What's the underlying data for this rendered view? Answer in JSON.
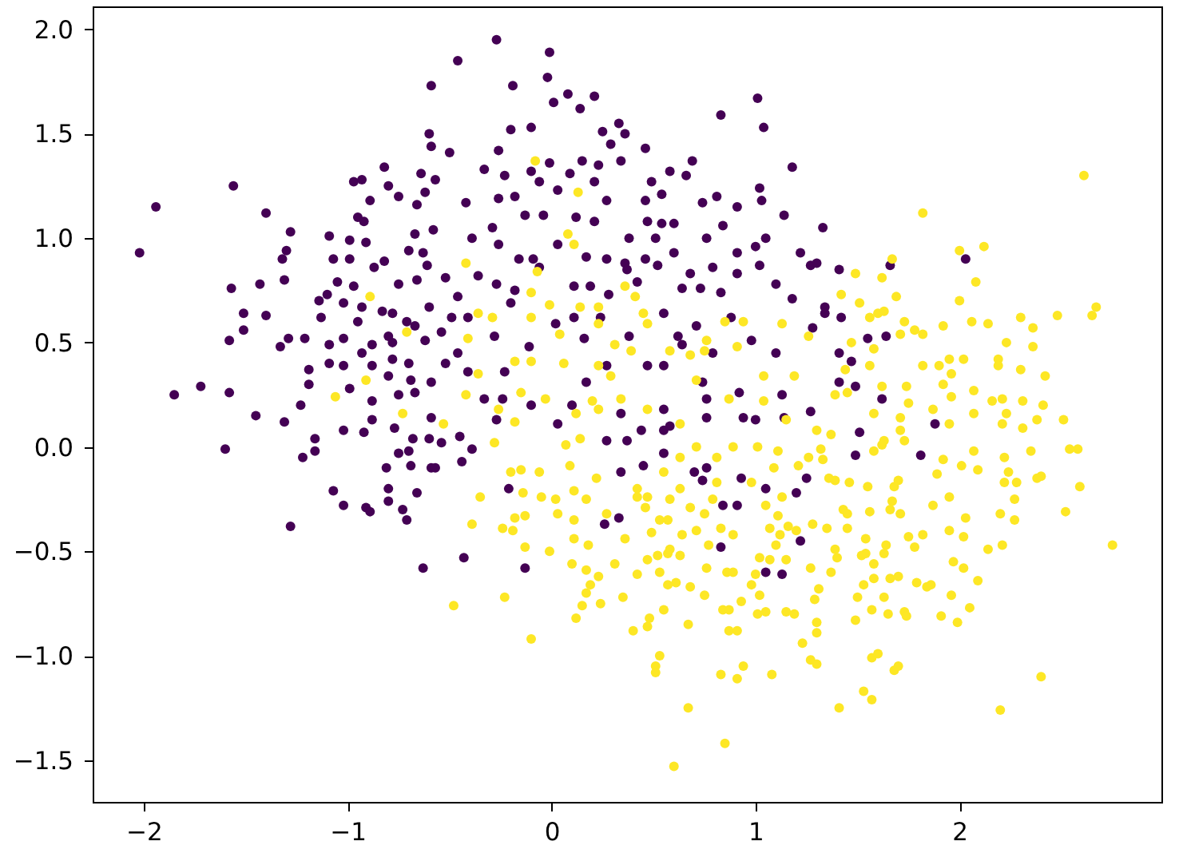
{
  "chart_data": {
    "type": "scatter",
    "xlim": [
      -2.25,
      2.99
    ],
    "ylim": [
      -1.7,
      2.11
    ],
    "xticks": [
      {
        "value": -2,
        "label": "−2"
      },
      {
        "value": -1,
        "label": "−1"
      },
      {
        "value": 0,
        "label": "0"
      },
      {
        "value": 1,
        "label": "1"
      },
      {
        "value": 2,
        "label": "2"
      }
    ],
    "yticks": [
      {
        "value": -1.5,
        "label": "−1.5"
      },
      {
        "value": -1,
        "label": "−1.0"
      },
      {
        "value": -0.5,
        "label": "−0.5"
      },
      {
        "value": 0,
        "label": "0.0"
      },
      {
        "value": 0.5,
        "label": "0.5"
      },
      {
        "value": 1,
        "label": "1.0"
      },
      {
        "value": 1.5,
        "label": "1.5"
      },
      {
        "value": 2,
        "label": "2.0"
      }
    ],
    "marker": "circle",
    "series": [
      {
        "color": "#440154",
        "x": [
          -2.02,
          -1.94,
          -1.56,
          -1.4,
          -1.28,
          -1.3,
          -1.32,
          -1.31,
          -1.57,
          -1.43,
          -1.51,
          -1.4,
          -1.58,
          -1.51,
          -1.29,
          -1.33,
          -1.21,
          -1.85,
          -1.72,
          -1.58,
          -1.19,
          -1.19,
          -1.23,
          -0.59,
          -0.6,
          -0.59,
          -0.82,
          -0.97,
          -0.93,
          -0.64,
          -0.57,
          -0.8,
          -0.75,
          -0.62,
          -0.89,
          -0.66,
          -0.95,
          -0.92,
          -0.58,
          -1.09,
          -0.99,
          -0.91,
          -0.67,
          -0.7,
          -0.63,
          -1.07,
          -0.99,
          -0.82,
          -0.87,
          -0.61,
          -1.05,
          -0.97,
          -0.75,
          -0.66,
          -0.52,
          -1.14,
          -1.1,
          -1.02,
          -0.93,
          -0.83,
          -0.78,
          -0.6,
          -1.13,
          -0.95,
          -0.71,
          -0.67,
          -1.02,
          -0.88,
          -0.8,
          -0.78,
          -1.09,
          -0.93,
          -0.78,
          -0.62,
          -0.54,
          -1.09,
          -1.02,
          -0.88,
          -0.8,
          -0.7,
          -0.69,
          -0.59,
          -0.52,
          -0.99,
          -0.88,
          -0.75,
          -0.67,
          -1.45,
          -1.31,
          -1.6,
          -1.16,
          -1.16,
          -1.22,
          -1.28,
          -1.07,
          -1.02,
          -1.02,
          -0.92,
          -0.88,
          -0.91,
          -0.89,
          -0.81,
          -0.8,
          -0.8,
          -0.77,
          -0.75,
          -0.73,
          -0.71,
          -0.7,
          -0.69,
          -0.68,
          -0.66,
          -0.63,
          -0.6,
          -0.59,
          -0.57,
          -0.54,
          -0.59,
          -0.27,
          -0.46,
          -0.01,
          -0.02,
          -0.19,
          0.01,
          0.08,
          0.14,
          0.21,
          -0.2,
          -0.1,
          -0.5,
          -0.26,
          0.25,
          0.33,
          0.29,
          0.36,
          0.46,
          0.83,
          1.01,
          1.04,
          1.18,
          -0.33,
          -0.23,
          -0.1,
          -0.01,
          0.09,
          0.15,
          0.23,
          0.34,
          -0.42,
          -0.26,
          -0.18,
          -0.06,
          0.03,
          0.21,
          0.27,
          0.49,
          0.58,
          0.66,
          0.69,
          0.54,
          0.46,
          0.74,
          0.81,
          0.91,
          1.02,
          1.03,
          1.14,
          -0.29,
          -0.13,
          -0.04,
          0.12,
          0.21,
          0.38,
          0.47,
          0.54,
          0.6,
          0.51,
          0.76,
          0.84,
          0.91,
          1.0,
          1.05,
          1.22,
          -0.39,
          -0.26,
          -0.16,
          -0.09,
          0.03,
          0.17,
          0.27,
          0.36,
          0.46,
          0.52,
          0.6,
          0.68,
          0.79,
          0.91,
          1.02,
          1.1,
          1.18,
          -0.36,
          -0.27,
          -0.18,
          -0.06,
          0.11,
          0.19,
          0.28,
          0.37,
          0.42,
          0.64,
          0.73,
          0.83,
          -0.46,
          -0.49,
          -0.41,
          -0.28,
          -0.2,
          0.02,
          0.11,
          0.16,
          0.24,
          0.38,
          0.55,
          0.62,
          0.71,
          0.79,
          0.88,
          0.98,
          1.1,
          -0.46,
          -0.41,
          -0.23,
          -0.11,
          0.17,
          0.27,
          0.47,
          0.55,
          0.64,
          0.74,
          0.92,
          1.13,
          -0.33,
          -0.24,
          -0.1,
          0.1,
          0.34,
          0.55,
          0.76,
          1.33,
          1.27,
          1.3,
          1.41,
          1.66,
          2.03,
          1.34,
          1.34,
          1.42,
          1.28,
          1.64,
          1.55,
          1.41,
          1.47,
          1.41,
          1.49,
          1.62,
          1.27,
          1.51,
          1.49,
          1.88,
          1.81,
          -0.27,
          0.03,
          -0.45,
          -0.39,
          -0.44,
          -0.21,
          -0.43,
          -0.13,
          0.27,
          0.37,
          0.34,
          0.45,
          0.44,
          0.55,
          0.58,
          0.55,
          0.76,
          0.7,
          0.76,
          0.74,
          0.93,
          0.94,
          1.0,
          0.84,
          0.91,
          1.05,
          1.2,
          1.25,
          0.26,
          0.33,
          0.83,
          1.22,
          1.05,
          1.13,
          1.14
        ],
        "values": [
          0.93,
          1.15,
          1.25,
          1.12,
          1.03,
          0.94,
          0.9,
          0.8,
          0.76,
          0.78,
          0.64,
          0.63,
          0.51,
          0.56,
          0.52,
          0.48,
          0.52,
          0.25,
          0.29,
          0.26,
          0.37,
          0.3,
          0.2,
          1.73,
          1.5,
          1.44,
          1.34,
          1.27,
          1.28,
          1.31,
          1.28,
          1.25,
          1.2,
          1.22,
          1.18,
          1.16,
          1.1,
          1.08,
          1.04,
          1.01,
          0.99,
          0.98,
          1.02,
          0.94,
          0.93,
          0.9,
          0.9,
          0.89,
          0.86,
          0.87,
          0.79,
          0.77,
          0.78,
          0.8,
          0.81,
          0.7,
          0.73,
          0.69,
          0.67,
          0.65,
          0.64,
          0.67,
          0.62,
          0.6,
          0.6,
          0.58,
          0.52,
          0.49,
          0.53,
          0.5,
          0.49,
          0.45,
          0.42,
          0.51,
          0.55,
          0.4,
          0.39,
          0.39,
          0.34,
          0.4,
          0.32,
          0.31,
          0.4,
          0.28,
          0.22,
          0.25,
          0.26,
          0.15,
          0.12,
          -0.01,
          0.04,
          -0.02,
          -0.05,
          -0.38,
          -0.21,
          -0.28,
          0.08,
          0.07,
          0.13,
          -0.29,
          -0.31,
          -0.1,
          -0.2,
          -0.26,
          0.09,
          -0.03,
          -0.3,
          -0.35,
          -0.02,
          -0.09,
          0.04,
          -0.22,
          -0.58,
          0.04,
          -0.1,
          -0.1,
          0.02,
          0.14,
          1.95,
          1.85,
          1.89,
          1.77,
          1.73,
          1.65,
          1.69,
          1.62,
          1.68,
          1.52,
          1.53,
          1.41,
          1.42,
          1.51,
          1.55,
          1.45,
          1.5,
          1.43,
          1.59,
          1.67,
          1.53,
          1.34,
          1.33,
          1.3,
          1.32,
          1.36,
          1.31,
          1.37,
          1.35,
          1.37,
          1.17,
          1.19,
          1.2,
          1.27,
          1.23,
          1.27,
          1.18,
          1.27,
          1.32,
          1.3,
          1.37,
          1.21,
          1.18,
          1.17,
          1.2,
          1.15,
          1.24,
          1.18,
          1.11,
          1.05,
          1.11,
          1.11,
          1.1,
          1.08,
          1.0,
          1.08,
          1.07,
          1.07,
          1.0,
          1.0,
          1.06,
          0.93,
          0.96,
          1.0,
          0.93,
          1.0,
          0.97,
          0.9,
          0.9,
          0.97,
          0.91,
          0.9,
          0.88,
          0.9,
          0.87,
          0.93,
          0.83,
          0.86,
          0.83,
          0.87,
          0.78,
          0.71,
          0.82,
          0.78,
          0.75,
          0.86,
          0.77,
          0.77,
          0.73,
          0.85,
          0.79,
          0.76,
          0.76,
          0.74,
          0.72,
          0.62,
          0.62,
          0.53,
          0.69,
          0.59,
          0.62,
          0.52,
          0.62,
          0.53,
          0.64,
          0.53,
          0.58,
          0.45,
          0.62,
          0.51,
          0.45,
          0.45,
          0.36,
          0.36,
          0.48,
          0.31,
          0.39,
          0.39,
          0.39,
          0.49,
          0.31,
          0.26,
          0.25,
          0.23,
          0.23,
          0.2,
          0.2,
          0.16,
          0.18,
          0.23,
          1.05,
          0.87,
          0.88,
          0.85,
          0.87,
          0.9,
          0.67,
          0.64,
          0.62,
          0.57,
          0.53,
          0.52,
          0.45,
          0.41,
          0.31,
          0.29,
          0.23,
          0.17,
          0.07,
          -0.04,
          0.11,
          -0.04,
          0.13,
          0.11,
          0.05,
          -0.01,
          -0.07,
          -0.2,
          -0.53,
          -0.58,
          0.03,
          0.03,
          -0.12,
          -0.09,
          0.08,
          0.08,
          0.1,
          -0.03,
          0.14,
          -0.12,
          -0.1,
          -0.16,
          -0.15,
          0.14,
          0.13,
          -0.28,
          -0.28,
          -0.2,
          -0.22,
          -0.15,
          -0.37,
          -0.34,
          -0.48,
          -0.45,
          -0.6,
          -0.61,
          0.14
        ]
      },
      {
        "color": "#fde725",
        "x": [
          -0.89,
          -0.71,
          -0.91,
          -1.06,
          -0.73,
          -0.53,
          -0.08,
          0.13,
          0.08,
          0.11,
          -0.42,
          -0.07,
          -0.1,
          0.36,
          0.41,
          -0.36,
          -0.29,
          -0.1,
          -0.01,
          0.14,
          0.23,
          0.45,
          0.04,
          0.23,
          0.31,
          0.39,
          0.47,
          0.76,
          0.85,
          0.94,
          0.91,
          1.13,
          1.26,
          -0.41,
          -0.18,
          -0.1,
          0.06,
          0.23,
          0.29,
          0.58,
          0.68,
          0.75,
          0.71,
          1.04,
          1.19,
          -0.36,
          -0.15,
          -0.03,
          0.2,
          0.34,
          0.47,
          0.87,
          1.04,
          -0.42,
          -0.26,
          0.12,
          0.23,
          2.61,
          1.82,
          2.0,
          2.12,
          1.67,
          1.49,
          1.62,
          2.08,
          1.42,
          1.69,
          2.0,
          1.51,
          2.67,
          2.65,
          1.6,
          1.63,
          1.56,
          2.48,
          2.3,
          2.36,
          1.73,
          1.78,
          1.82,
          1.92,
          2.06,
          2.14,
          1.71,
          1.58,
          2.23,
          2.36,
          1.47,
          1.82,
          1.9,
          1.95,
          2.02,
          2.19,
          2.19,
          2.3,
          1.56,
          1.44,
          1.96,
          2.42,
          1.92,
          1.74,
          1.62,
          2.07,
          1.39,
          1.45,
          1.96,
          1.75,
          2.16,
          2.21,
          2.31,
          2.41,
          1.58,
          1.87,
          2.07,
          2.23,
          2.51,
          2.75,
          2.59,
          2.52,
          2.58,
          2.54,
          2.4,
          2.38,
          2.35,
          2.38,
          2.31,
          2.28,
          2.27,
          2.27,
          2.22,
          2.24,
          2.22,
          2.2,
          2.21,
          2.14,
          2.21,
          2.07,
          2.09,
          2.01,
          2.03,
          2.02,
          1.95,
          1.95,
          1.97,
          2.02,
          2.09,
          1.96,
          2.05,
          1.99,
          1.91,
          1.87,
          1.82,
          1.89,
          1.92,
          1.95,
          1.71,
          1.73,
          1.7,
          1.68,
          1.66,
          1.71,
          1.75,
          1.78,
          1.79,
          1.84,
          1.86,
          1.73,
          1.74,
          1.65,
          1.63,
          1.57,
          1.49,
          1.5,
          1.53,
          1.58,
          1.66,
          1.7,
          1.58,
          1.64,
          1.63,
          1.54,
          1.54,
          1.52,
          1.39,
          1.4,
          1.37,
          1.31,
          1.29,
          1.3,
          1.3,
          1.27,
          1.3,
          1.57,
          1.6,
          1.68,
          1.7,
          1.53,
          1.57,
          1.41,
          2.2,
          2.4,
          1.45,
          1.45,
          1.43,
          1.28,
          1.35,
          1.56,
          1.46,
          1.39,
          1.36,
          1.55,
          1.67,
          1.62,
          1.63,
          1.58,
          1.32,
          1.33,
          1.26,
          1.37,
          1.3,
          1.71,
          0.6,
          0.67,
          0.85,
          -0.1,
          0.12,
          -0.23,
          -0.48,
          0.4,
          0.47,
          0.48,
          0.53,
          0.51,
          0.51,
          0.67,
          0.83,
          0.91,
          0.94,
          1.08,
          0.87,
          0.91,
          1.23,
          0.84,
          0.87,
          0.93,
          1.01,
          1.05,
          1.15,
          1.19,
          0.75,
          0.55,
          0.35,
          0.24,
          0.17,
          0.15,
          0.19,
          0.23,
          0.31,
          0.1,
          -0.01,
          -0.13,
          0.11,
          0.18,
          -0.24,
          -0.19,
          -0.39,
          -0.18,
          -0.13,
          -0.35,
          0.03,
          0.02,
          0.11,
          0.27,
          0.36,
          0.42,
          0.47,
          0.53,
          0.57,
          0.61,
          0.68,
          0.63,
          0.57,
          0.52,
          0.64,
          0.58,
          0.49,
          0.53,
          0.57,
          0.46,
          0.42,
          0.47,
          0.68,
          0.75,
          0.71,
          0.77,
          0.86,
          0.89,
          1.0,
          1.02,
          0.98,
          1.02,
          1.07,
          1.15,
          1.1,
          1.16,
          1.07,
          1.12,
          1.05,
          1.11,
          1.2,
          0.83,
          0.89,
          0.76,
          0.17,
          0.63,
          0.58,
          0.79,
          0.81,
          0.98,
          1.13,
          0.11,
          0.17,
          -0.05,
          -0.14,
          0.09,
          -0.06,
          -0.15,
          -0.2,
          -0.28,
          0.07,
          0.14,
          0.22,
          0.42,
          0.55,
          0.63,
          0.71,
          0.81,
          0.89,
          1.01,
          1.11,
          1.21,
          1.09,
          -0.18,
          0.63,
          1.15,
          1.27
        ],
        "values": [
          0.72,
          0.55,
          0.32,
          0.24,
          0.16,
          0.11,
          1.37,
          1.22,
          1.02,
          0.97,
          0.88,
          0.84,
          0.74,
          0.77,
          0.72,
          0.64,
          0.62,
          0.62,
          0.68,
          0.67,
          0.67,
          0.64,
          0.54,
          0.59,
          0.49,
          0.46,
          0.59,
          0.51,
          0.6,
          0.6,
          0.48,
          0.59,
          0.53,
          0.52,
          0.41,
          0.41,
          0.4,
          0.39,
          0.34,
          0.46,
          0.44,
          0.46,
          0.32,
          0.34,
          0.34,
          0.35,
          0.26,
          0.23,
          0.22,
          0.23,
          0.18,
          0.23,
          0.22,
          0.25,
          0.18,
          0.16,
          0.18,
          1.3,
          1.12,
          0.94,
          0.96,
          0.9,
          0.83,
          0.81,
          0.79,
          0.73,
          0.72,
          0.7,
          0.69,
          0.67,
          0.63,
          0.64,
          0.65,
          0.62,
          0.63,
          0.62,
          0.57,
          0.6,
          0.56,
          0.54,
          0.58,
          0.6,
          0.59,
          0.54,
          0.47,
          0.5,
          0.48,
          0.5,
          0.39,
          0.39,
          0.42,
          0.42,
          0.42,
          0.39,
          0.37,
          0.39,
          0.37,
          0.35,
          0.34,
          0.3,
          0.29,
          0.29,
          0.27,
          0.25,
          0.26,
          0.24,
          0.21,
          0.22,
          0.23,
          0.22,
          0.2,
          0.16,
          0.18,
          0.16,
          0.16,
          0.13,
          -0.47,
          -0.19,
          -0.31,
          -0.01,
          -0.01,
          -0.14,
          -0.15,
          -0.02,
          0.13,
          0.09,
          -0.17,
          -0.25,
          -0.35,
          -0.17,
          -0.12,
          -0.05,
          -0.32,
          -0.47,
          -0.49,
          0.11,
          -0.02,
          -0.11,
          -0.09,
          -0.34,
          -0.43,
          -0.24,
          -0.4,
          -0.55,
          -0.58,
          -0.64,
          -0.71,
          -0.77,
          -0.84,
          -0.81,
          -0.28,
          -0.42,
          -0.13,
          -0.06,
          0.11,
          0.08,
          0.03,
          -0.16,
          -0.19,
          -0.3,
          -0.32,
          -0.43,
          -0.48,
          -0.65,
          -0.67,
          -0.66,
          -0.79,
          -0.81,
          -0.8,
          -0.72,
          -0.78,
          -0.83,
          -0.72,
          -0.66,
          -0.63,
          -0.63,
          -0.62,
          -0.56,
          -0.47,
          -0.51,
          -0.44,
          -0.51,
          -0.52,
          -0.49,
          -0.53,
          -0.6,
          -0.68,
          -0.73,
          -0.84,
          -0.89,
          -1.02,
          -1.04,
          -1.01,
          -0.99,
          -1.07,
          -1.05,
          -1.17,
          -1.21,
          -1.25,
          -1.26,
          -1.1,
          -0.39,
          -0.32,
          -0.3,
          -0.37,
          -0.39,
          -0.31,
          -0.17,
          -0.16,
          -0.15,
          -0.19,
          -0.26,
          0.01,
          0.03,
          -0.02,
          -0.01,
          -0.06,
          -0.05,
          0.06,
          0.08,
          0.14,
          -1.53,
          -1.25,
          -1.42,
          -0.92,
          -0.82,
          -0.72,
          -0.76,
          -0.88,
          -0.86,
          -0.82,
          -1.0,
          -1.05,
          -1.08,
          -0.85,
          -1.09,
          -1.11,
          -1.05,
          -1.09,
          -0.88,
          -0.88,
          -0.94,
          -0.78,
          -0.78,
          -0.74,
          -0.8,
          -0.79,
          -0.79,
          -0.8,
          -0.71,
          -0.78,
          -0.72,
          -0.75,
          -0.7,
          -0.76,
          -0.66,
          -0.62,
          -0.56,
          -0.56,
          -0.5,
          -0.48,
          -0.44,
          -0.47,
          -0.39,
          -0.4,
          -0.37,
          -0.34,
          -0.33,
          -0.24,
          -0.32,
          -0.25,
          -0.35,
          -0.32,
          -0.44,
          -0.61,
          -0.54,
          -0.6,
          -0.66,
          -0.65,
          -0.67,
          -0.52,
          -0.51,
          -0.52,
          -0.42,
          -0.49,
          -0.41,
          -0.35,
          -0.35,
          -0.29,
          -0.24,
          -0.24,
          -0.29,
          -0.32,
          -0.4,
          -0.47,
          -0.6,
          -0.6,
          -0.61,
          -0.71,
          -0.66,
          -0.53,
          -0.54,
          -0.54,
          -0.47,
          -0.38,
          -0.39,
          -0.42,
          -0.28,
          -0.33,
          -0.4,
          -0.39,
          -0.42,
          -0.58,
          -0.59,
          -0.2,
          -0.25,
          -0.25,
          -0.17,
          -0.17,
          -0.24,
          -0.21,
          -0.25,
          -0.24,
          -0.22,
          -0.09,
          -0.12,
          -0.11,
          -0.12,
          0.02,
          0.01,
          0.04,
          -0.15,
          -0.2,
          -0.12,
          -0.05,
          0.0,
          -0.05,
          0.0,
          0.0,
          -0.02,
          -0.09,
          -0.1,
          0.12,
          0.11,
          0.13,
          -0.58
        ]
      }
    ]
  }
}
